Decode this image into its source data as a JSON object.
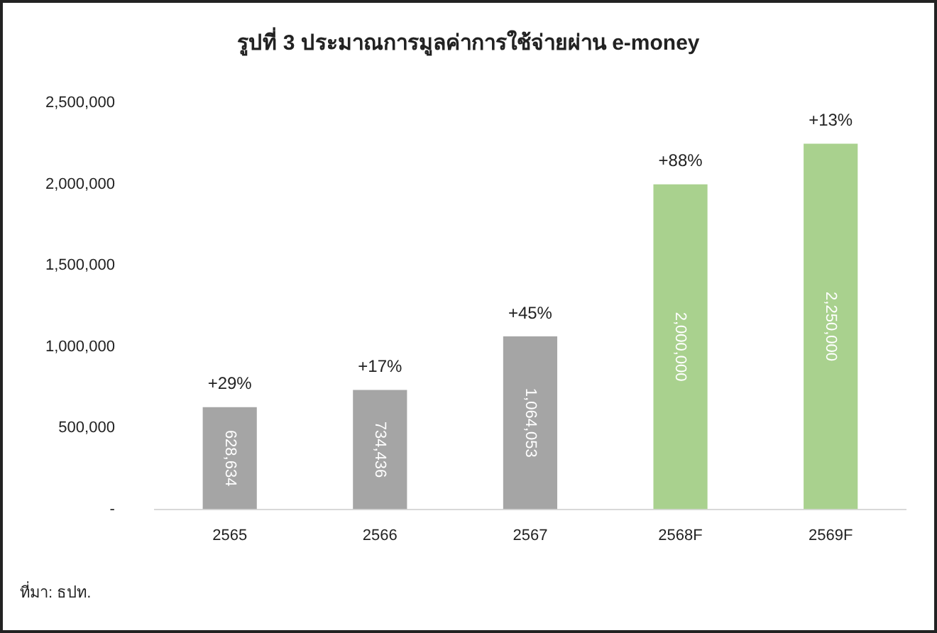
{
  "chart_data": {
    "type": "bar",
    "title": "รูปที่ 3 ประมาณการมูลค่าการใช้จ่ายผ่าน e-money",
    "categories": [
      "2565",
      "2566",
      "2567",
      "2568F",
      "2569F"
    ],
    "values": [
      628634,
      734436,
      1064053,
      2000000,
      2250000
    ],
    "colors": [
      "#a5a5a5",
      "#a5a5a5",
      "#a5a5a5",
      "#a9d18e",
      "#a9d18e"
    ],
    "value_labels": [
      "628,634",
      "734,436",
      "1,064,053",
      "2,000,000",
      "2,250,000"
    ],
    "ylim": [
      0,
      2500000
    ],
    "yticks": [
      {
        "value": 0,
        "label": "-"
      },
      {
        "value": 500000,
        "label": "500,000"
      },
      {
        "value": 1000000,
        "label": "1,000,000"
      },
      {
        "value": 1500000,
        "label": "1,500,000"
      },
      {
        "value": 2000000,
        "label": "2,000,000"
      },
      {
        "value": 2500000,
        "label": "2,500,000"
      }
    ],
    "grid": false,
    "legend": false,
    "annotations": [
      {
        "text": "+29%",
        "x": "2565",
        "y": 628634
      },
      {
        "text": "+17%",
        "x": "2566",
        "y": 734436
      },
      {
        "text": "+45%",
        "x": "2567",
        "y": 1064053
      },
      {
        "text": "+88%",
        "x": "2568F",
        "y": 2000000
      },
      {
        "text": "+13%",
        "x": "2569F",
        "y": 2250000
      },
      "ที่มา: ธปท."
    ]
  }
}
